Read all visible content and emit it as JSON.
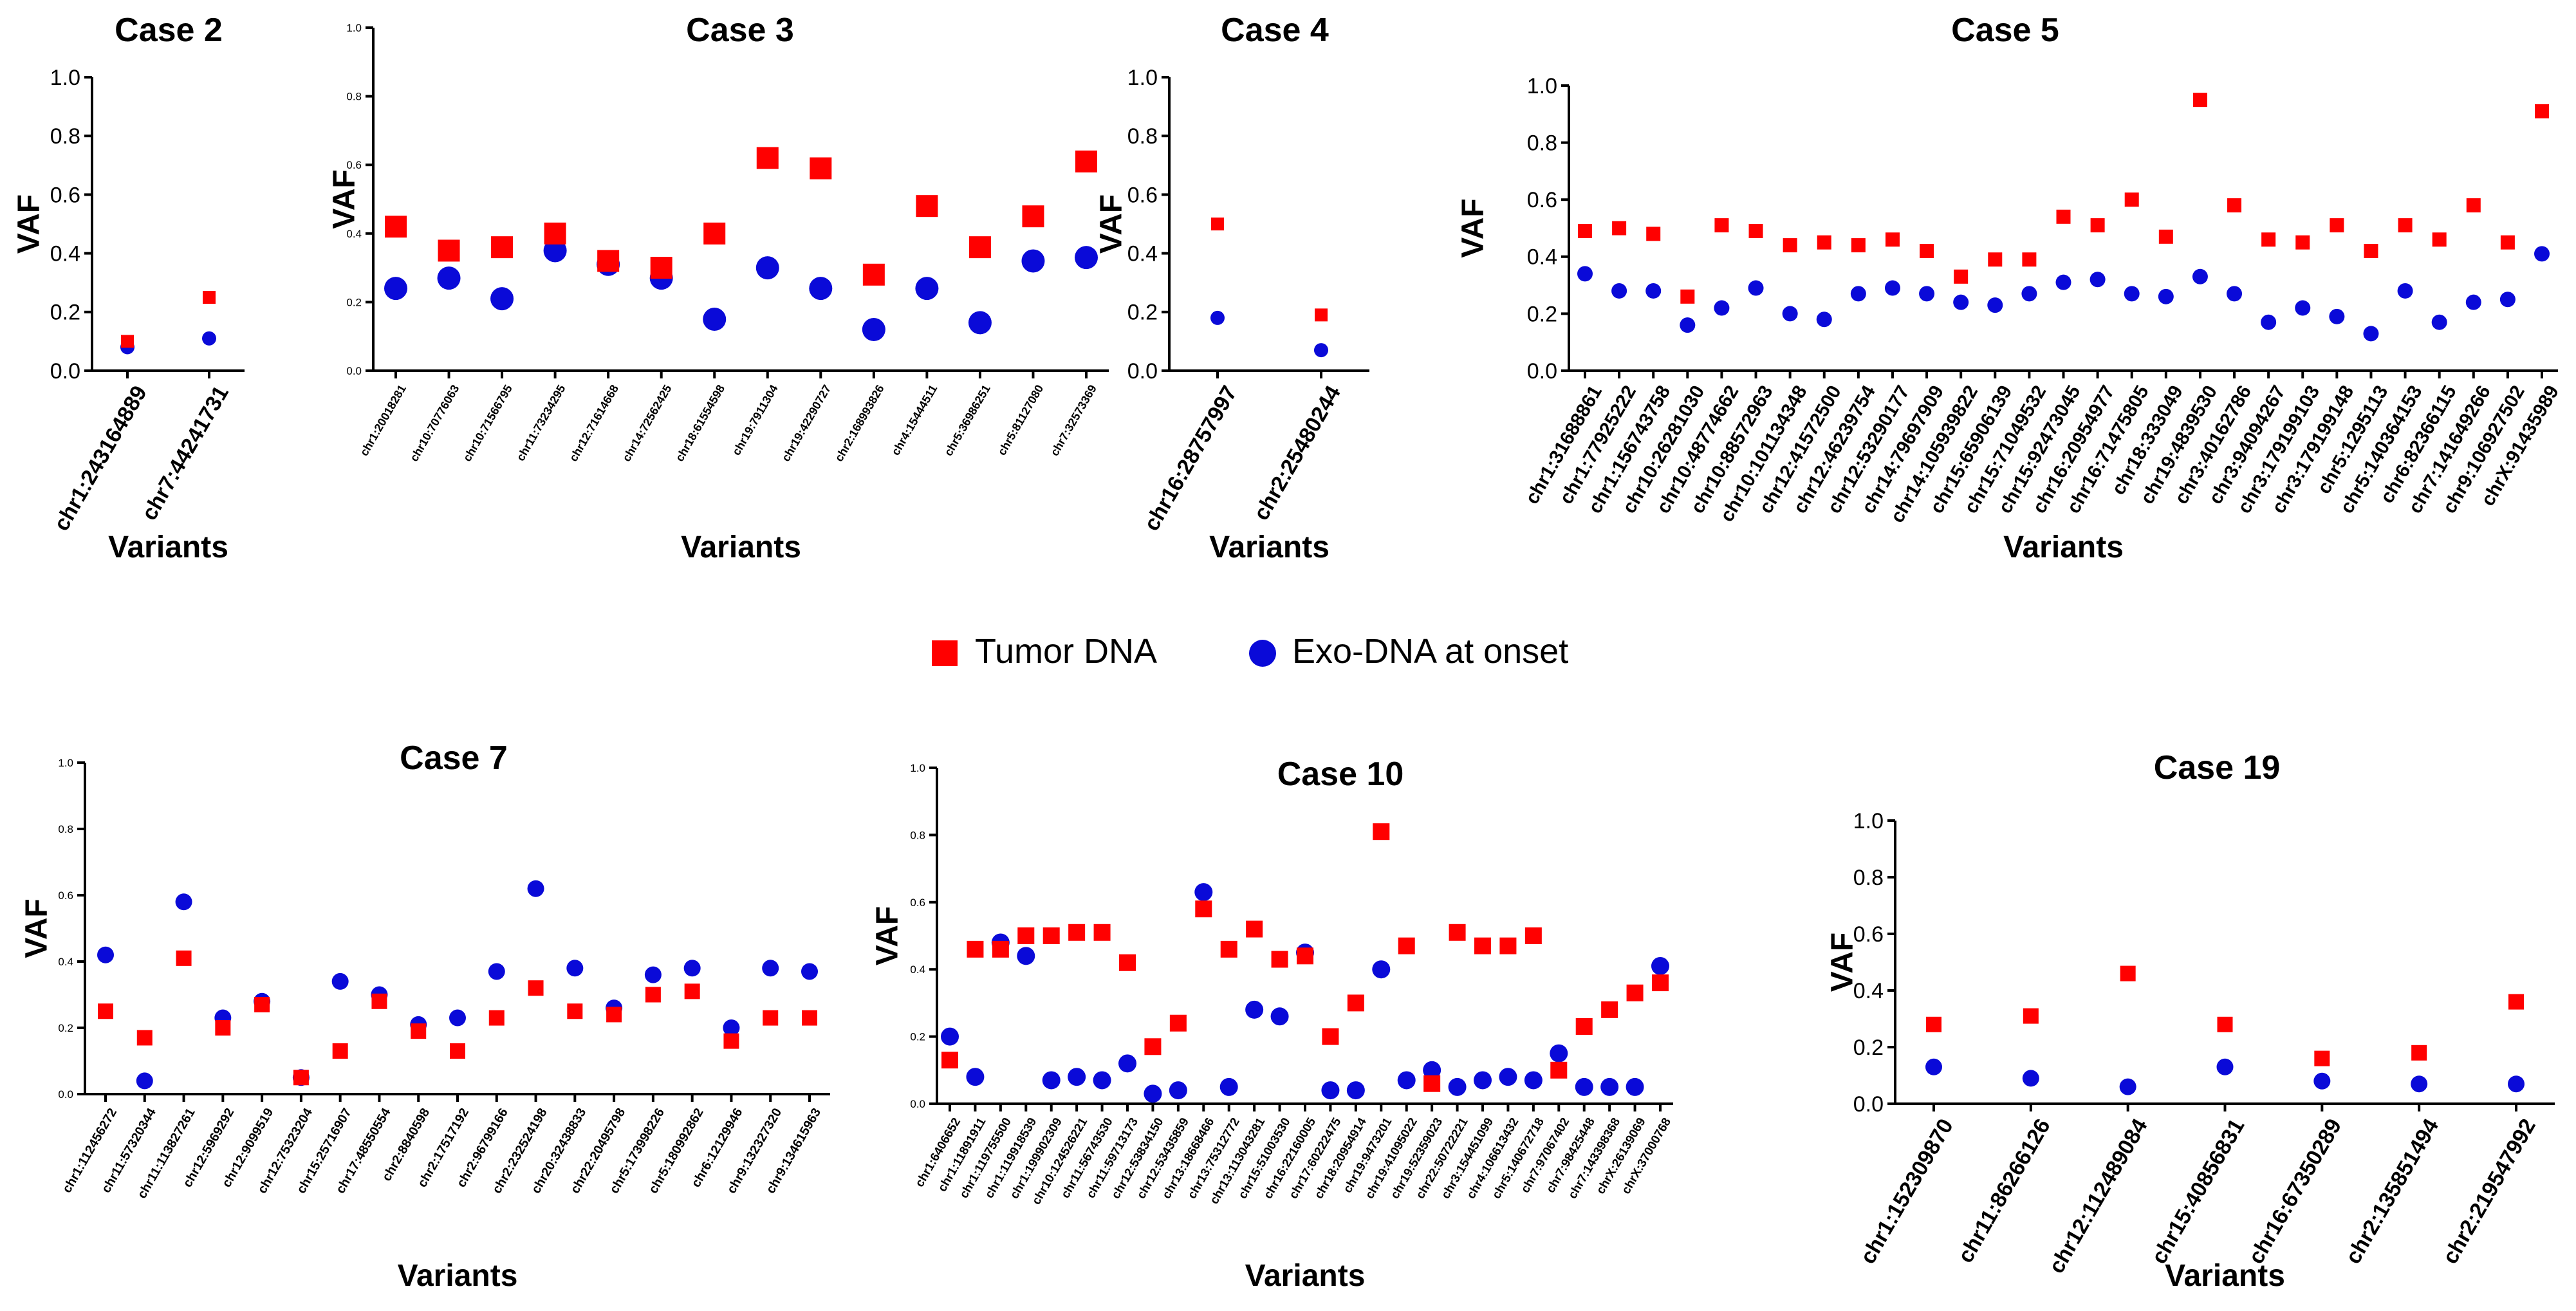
{
  "legend": {
    "tumor_label": "Tumor DNA",
    "exo_label": "Exo-DNA at onset",
    "tumor_color": "#ff0000",
    "exo_color": "#0a0ad8"
  },
  "chart_data": [
    {
      "id": "case2",
      "type": "scatter",
      "title": "Case 2",
      "ylabel": "VAF",
      "xlabel": "Variants",
      "ylim": [
        0,
        1
      ],
      "yticks": [
        "0.0",
        "0.2",
        "0.4",
        "0.6",
        "0.8",
        "1.0"
      ],
      "categories": [
        "chr1:243164889",
        "chr7:44241731"
      ],
      "series": [
        {
          "name": "Tumor DNA",
          "values": [
            0.1,
            0.25
          ]
        },
        {
          "name": "Exo-DNA at onset",
          "values": [
            0.08,
            0.11
          ]
        }
      ]
    },
    {
      "id": "case3",
      "type": "scatter",
      "title": "Case 3",
      "ylabel": "VAF",
      "xlabel": "Variants",
      "ylim": [
        0,
        1
      ],
      "yticks": [
        "0.0",
        "0.2",
        "0.4",
        "0.6",
        "0.8",
        "1.0"
      ],
      "categories": [
        "chr1:20018281",
        "chr10:70776063",
        "chr10:71566795",
        "chr11:73234295",
        "chr12:71614668",
        "chr14:72562425",
        "chr18:61554598",
        "chr19:7911304",
        "chr19:42290727",
        "chr2:168993826",
        "chr4:15444511",
        "chr5:36986251",
        "chr5:81127080",
        "chr7:32573369"
      ],
      "series": [
        {
          "name": "Tumor DNA",
          "values": [
            0.42,
            0.35,
            0.36,
            0.4,
            0.32,
            0.3,
            0.4,
            0.62,
            0.59,
            0.28,
            0.48,
            0.36,
            0.45,
            0.61
          ]
        },
        {
          "name": "Exo-DNA at onset",
          "values": [
            0.24,
            0.27,
            0.21,
            0.35,
            0.31,
            0.27,
            0.15,
            0.3,
            0.24,
            0.12,
            0.24,
            0.14,
            0.32,
            0.33
          ]
        }
      ]
    },
    {
      "id": "case4",
      "type": "scatter",
      "title": "Case 4",
      "ylabel": "VAF",
      "xlabel": "Variants",
      "ylim": [
        0,
        1
      ],
      "yticks": [
        "0.0",
        "0.2",
        "0.4",
        "0.6",
        "0.8",
        "1.0"
      ],
      "categories": [
        "chr16:28757997",
        "chr2:25480244"
      ],
      "series": [
        {
          "name": "Tumor DNA",
          "values": [
            0.5,
            0.19
          ]
        },
        {
          "name": "Exo-DNA at onset",
          "values": [
            0.18,
            0.07
          ]
        }
      ]
    },
    {
      "id": "case5",
      "type": "scatter",
      "title": "Case 5",
      "ylabel": "VAF",
      "xlabel": "Variants",
      "ylim": [
        0,
        1
      ],
      "yticks": [
        "0.0",
        "0.2",
        "0.4",
        "0.6",
        "0.8",
        "1.0"
      ],
      "categories": [
        "chr1:31688861",
        "chr1:77925222",
        "chr1:156743758",
        "chr10:26281030",
        "chr10:48774662",
        "chr10:88572963",
        "chr10:101134348",
        "chr12:41572500",
        "chr12:46239754",
        "chr12:53290177",
        "chr14:79697909",
        "chr14:105939822",
        "chr15:65906139",
        "chr15:71049532",
        "chr15:92473045",
        "chr16:20954977",
        "chr16:71475805",
        "chr18:333049",
        "chr19:4839530",
        "chr3:40162786",
        "chr3:94094267",
        "chr3:179199103",
        "chr3:179199148",
        "chr5:1295113",
        "chr5:140364153",
        "chr6:82366115",
        "chr7:141649266",
        "chr9:106927502",
        "chrX:91435989"
      ],
      "series": [
        {
          "name": "Tumor DNA",
          "values": [
            0.49,
            0.5,
            0.48,
            0.26,
            0.51,
            0.49,
            0.44,
            0.45,
            0.44,
            0.46,
            0.42,
            0.33,
            0.39,
            0.39,
            0.54,
            0.51,
            0.6,
            0.47,
            0.95,
            0.58,
            0.46,
            0.45,
            0.51,
            0.42,
            0.51,
            0.46,
            0.58,
            0.45,
            0.91
          ]
        },
        {
          "name": "Exo-DNA at onset",
          "values": [
            0.34,
            0.28,
            0.28,
            0.16,
            0.22,
            0.29,
            0.2,
            0.18,
            0.27,
            0.29,
            0.27,
            0.24,
            0.23,
            0.27,
            0.31,
            0.32,
            0.27,
            0.26,
            0.33,
            0.27,
            0.17,
            0.22,
            0.19,
            0.13,
            0.28,
            0.17,
            0.24,
            0.25,
            0.41
          ]
        }
      ]
    },
    {
      "id": "case7",
      "type": "scatter",
      "title": "Case 7",
      "ylabel": "VAF",
      "xlabel": "Variants",
      "ylim": [
        0,
        1
      ],
      "yticks": [
        "0.0",
        "0.2",
        "0.4",
        "0.6",
        "0.8",
        "1.0"
      ],
      "categories": [
        "chr1:112456272",
        "chr11:57320344",
        "chr11:113827261",
        "chr12:5969292",
        "chr12:9099519",
        "chr12:75323204",
        "chr15:25716907",
        "chr17:48550554",
        "chr2:8840598",
        "chr2:17517192",
        "chr2:96799166",
        "chr2:232524198",
        "chr20:32438833",
        "chr22:20495798",
        "chr5:173998226",
        "chr5:180992862",
        "chr6:12129946",
        "chr9:132327320",
        "chr9:134615963"
      ],
      "series": [
        {
          "name": "Tumor DNA",
          "values": [
            0.25,
            0.17,
            0.41,
            0.2,
            0.27,
            0.05,
            0.13,
            0.28,
            0.19,
            0.13,
            0.23,
            0.32,
            0.25,
            0.24,
            0.3,
            0.31,
            0.16,
            0.23,
            0.23
          ]
        },
        {
          "name": "Exo-DNA at onset",
          "values": [
            0.42,
            0.04,
            0.58,
            0.23,
            0.28,
            0.05,
            0.34,
            0.3,
            0.21,
            0.23,
            0.37,
            0.62,
            0.38,
            0.26,
            0.36,
            0.38,
            0.2,
            0.38,
            0.37
          ]
        }
      ]
    },
    {
      "id": "case10",
      "type": "scatter",
      "title": "Case 10",
      "ylabel": "VAF",
      "xlabel": "Variants",
      "ylim": [
        0,
        1
      ],
      "yticks": [
        "0.0",
        "0.2",
        "0.4",
        "0.6",
        "0.8",
        "1.0"
      ],
      "categories": [
        "chr1:6406652",
        "chr1:11891911",
        "chr1:119755500",
        "chr1:119918539",
        "chr1:199902309",
        "chr10:124526221",
        "chr11:56743530",
        "chr11:59713173",
        "chr12:53834150",
        "chr12:53435859",
        "chr13:18668466",
        "chr13:75312772",
        "chr13:113043281",
        "chr15:51003530",
        "chr16:22160005",
        "chr17:60222475",
        "chr18:20954914",
        "chr19:9473201",
        "chr19:41095022",
        "chr19:52359023",
        "chr22:50722221",
        "chr3:154451099",
        "chr4:106613432",
        "chr5:140672718",
        "chr7:97067402",
        "chr7:98425448",
        "chr7:143398368",
        "chrX:26139069",
        "chrX:37000768"
      ],
      "series": [
        {
          "name": "Tumor DNA",
          "values": [
            0.13,
            0.46,
            0.46,
            0.5,
            0.5,
            0.51,
            0.51,
            0.42,
            0.17,
            0.24,
            0.58,
            0.46,
            0.52,
            0.43,
            0.44,
            0.2,
            0.3,
            0.81,
            0.47,
            0.06,
            0.51,
            0.47,
            0.47,
            0.5,
            0.1,
            0.23,
            0.28,
            0.33,
            0.36
          ]
        },
        {
          "name": "Exo-DNA at onset",
          "values": [
            0.2,
            0.08,
            0.48,
            0.44,
            0.07,
            0.08,
            0.07,
            0.12,
            0.03,
            0.04,
            0.63,
            0.05,
            0.28,
            0.26,
            0.45,
            0.04,
            0.04,
            0.4,
            0.07,
            0.1,
            0.05,
            0.07,
            0.08,
            0.07,
            0.15,
            0.05,
            0.05,
            0.05,
            0.41
          ]
        }
      ]
    },
    {
      "id": "case19",
      "type": "scatter",
      "title": "Case 19",
      "ylabel": "VAF",
      "xlabel": "Variants",
      "ylim": [
        0,
        1
      ],
      "yticks": [
        "0.0",
        "0.2",
        "0.4",
        "0.6",
        "0.8",
        "1.0"
      ],
      "categories": [
        "chr1:152309870",
        "chr11:86266126",
        "chr12:112489084",
        "chr15:40856831",
        "chr16:67350289",
        "chr2:135851494",
        "chr2:219547992"
      ],
      "series": [
        {
          "name": "Tumor DNA",
          "values": [
            0.28,
            0.31,
            0.46,
            0.28,
            0.16,
            0.18,
            0.36
          ]
        },
        {
          "name": "Exo-DNA at onset",
          "values": [
            0.13,
            0.09,
            0.06,
            0.13,
            0.08,
            0.07,
            0.07
          ]
        }
      ]
    }
  ]
}
